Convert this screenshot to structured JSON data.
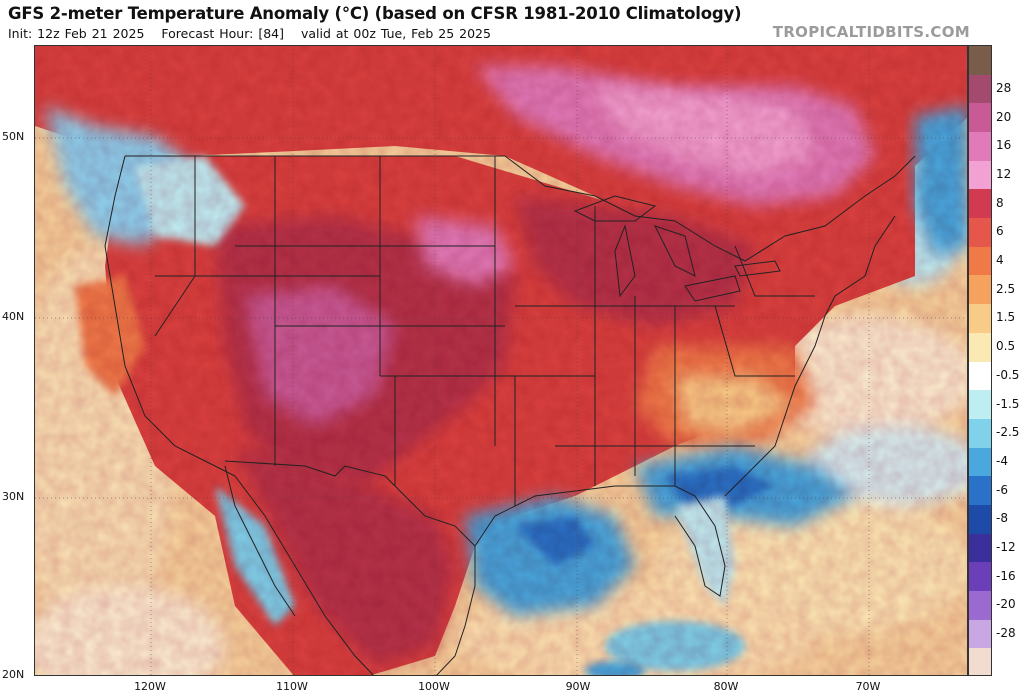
{
  "header": {
    "title": "GFS 2-meter Temperature Anomaly (°C) (based on CFSR 1981-2010 Climatology)",
    "init": "Init: 12z Feb 21 2025",
    "forecast_hour": "Forecast Hour: [84]",
    "valid": "valid at 00z Tue, Feb 25 2025",
    "credit": "TROPICALTIDBITS.COM"
  },
  "axes": {
    "lat_labels": [
      "50N",
      "40N",
      "30N",
      "20N"
    ],
    "lon_labels": [
      "120W",
      "110W",
      "100W",
      "90W",
      "80W",
      "70W"
    ]
  },
  "colorbar": {
    "labels": [
      "28",
      "20",
      "16",
      "12",
      "8",
      "6",
      "4",
      "2.5",
      "1.5",
      "0.5",
      "-0.5",
      "-1.5",
      "-2.5",
      "-4",
      "-6",
      "-8",
      "-12",
      "-16",
      "-20",
      "-28"
    ],
    "colors": {
      "gt28": "#7a5c4a",
      "28": "#a34a6e",
      "20": "#c85a96",
      "16": "#e07ab8",
      "12": "#f2a2d2",
      "8": "#d23a52",
      "6": "#e4574a",
      "4": "#ef7a48",
      "2.5": "#f5a25e",
      "1.5": "#f8cc86",
      "0.5": "#fbe9b4",
      "-0.5": "#ffffff",
      "-1.5": "#bfeef2",
      "-2.5": "#7fd2ea",
      "-4": "#4aa8de",
      "-6": "#2a72c8",
      "-8": "#1e4aa8",
      "-12": "#3b2f9c",
      "-16": "#6a3fb8",
      "-20": "#9a6ad0",
      "-28": "#c9a7e2",
      "lt-28": "#f2dcd0"
    }
  },
  "map_colors": {
    "ocean_warm": "#f7d9a4",
    "ocean_neutral": "#fbefd0",
    "cold_gulf": "#4aa8de",
    "cold_southeast": "#2a72c8",
    "warm_mid": "#d9413f",
    "warm_strong": "#b5304a",
    "very_warm": "#c85a96",
    "extreme_canada": "#e07ab8",
    "pale_cold": "#8fd3ef",
    "borders": "#222222"
  }
}
